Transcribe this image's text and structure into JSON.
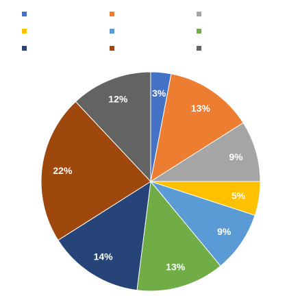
{
  "chart_data": {
    "type": "pie",
    "title": "",
    "legend": "top",
    "start_angle_deg": 0,
    "direction": "clockwise",
    "slices": [
      {
        "label": "",
        "value": 3,
        "display": "3%",
        "color": "#4472C4"
      },
      {
        "label": "",
        "value": 13,
        "display": "13%",
        "color": "#ED7D31"
      },
      {
        "label": "",
        "value": 9,
        "display": "9%",
        "color": "#A5A5A5"
      },
      {
        "label": "",
        "value": 5,
        "display": "5%",
        "color": "#FFC000"
      },
      {
        "label": "",
        "value": 9,
        "display": "9%",
        "color": "#5B9BD5"
      },
      {
        "label": "",
        "value": 13,
        "display": "13%",
        "color": "#70AD47"
      },
      {
        "label": "",
        "value": 14,
        "display": "14%",
        "color": "#264478"
      },
      {
        "label": "",
        "value": 22,
        "display": "22%",
        "color": "#9E480E"
      },
      {
        "label": "",
        "value": 12,
        "display": "12%",
        "color": "#636363"
      }
    ]
  }
}
